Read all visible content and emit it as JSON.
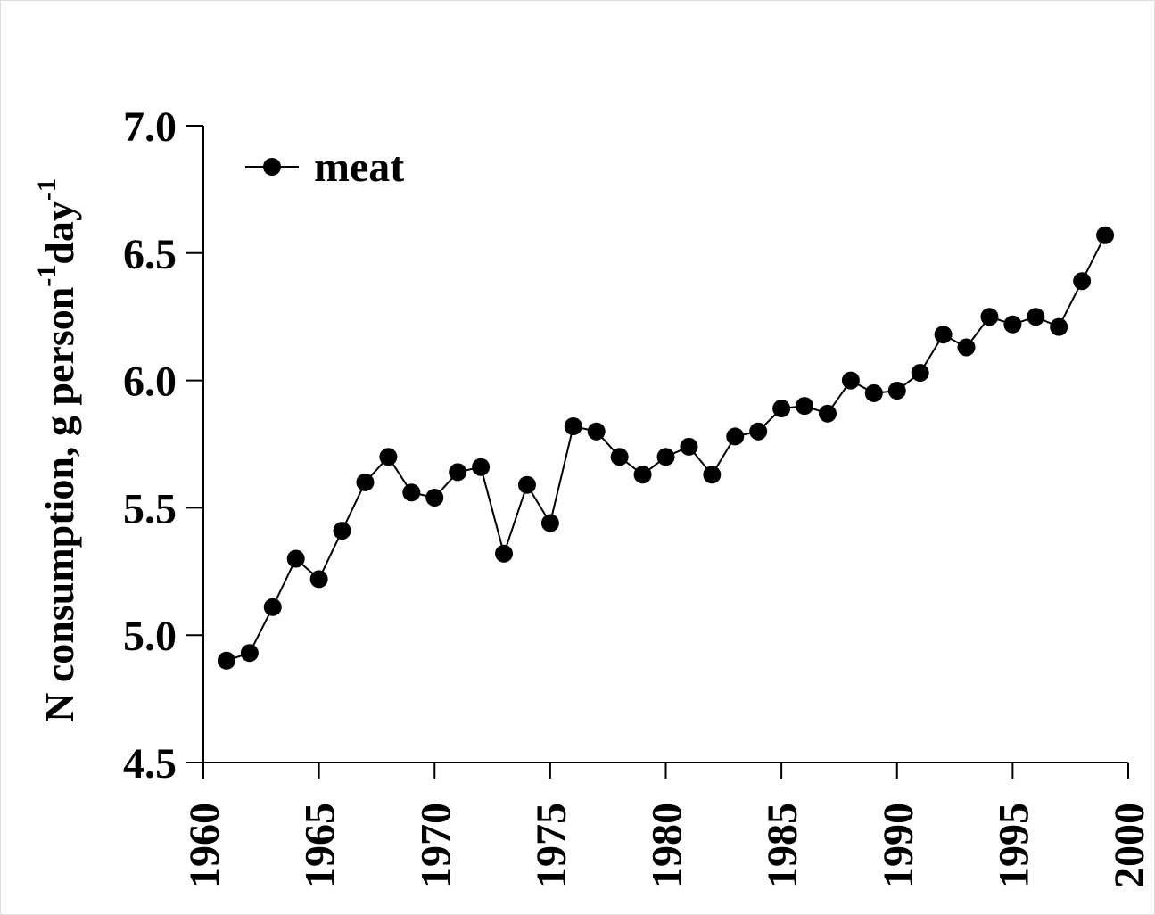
{
  "chart_data": {
    "type": "line",
    "ylabel": [
      "N consumption, g person",
      "-1",
      "day",
      "-1"
    ],
    "x": [
      1961,
      1962,
      1963,
      1964,
      1965,
      1966,
      1967,
      1968,
      1969,
      1970,
      1971,
      1972,
      1973,
      1974,
      1975,
      1976,
      1977,
      1978,
      1979,
      1980,
      1981,
      1982,
      1983,
      1984,
      1985,
      1986,
      1987,
      1988,
      1989,
      1990,
      1991,
      1992,
      1993,
      1994,
      1995,
      1996,
      1997,
      1998,
      1999
    ],
    "series": [
      {
        "name": "meat",
        "color": "#000000",
        "values": [
          4.9,
          4.93,
          5.11,
          5.3,
          5.22,
          5.41,
          5.6,
          5.7,
          5.56,
          5.54,
          5.64,
          5.66,
          5.32,
          5.59,
          5.44,
          5.82,
          5.8,
          5.7,
          5.63,
          5.7,
          5.74,
          5.63,
          5.78,
          5.8,
          5.89,
          5.9,
          5.87,
          6.0,
          5.95,
          5.96,
          6.03,
          6.18,
          6.13,
          6.25,
          6.22,
          6.25,
          6.21,
          6.39,
          6.57
        ]
      }
    ],
    "xlim": [
      1960,
      2000
    ],
    "xticks": [
      1960,
      1965,
      1970,
      1975,
      1980,
      1985,
      1990,
      1995,
      2000
    ],
    "ylim": [
      4.5,
      7.0
    ],
    "yticks": [
      4.5,
      {
        "value": 5.0,
        "label": "5.0"
      },
      5.5,
      {
        "value": 6.0,
        "label": "6.0"
      },
      6.5,
      {
        "value": 7.0,
        "label": "7.0"
      }
    ],
    "legend": "upper left",
    "grid": false
  }
}
